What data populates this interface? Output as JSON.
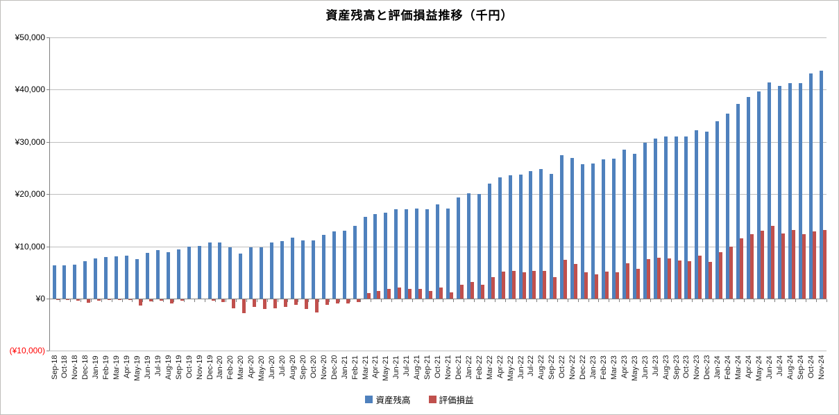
{
  "chart_data": {
    "type": "bar",
    "title": "資産残高と評価損益推移（千円）",
    "unit": "千円",
    "grid": true,
    "legend_position": "bottom",
    "ylim": [
      -10000,
      50000
    ],
    "y_ticks": [
      {
        "label": "¥50,000",
        "value": 50000,
        "color": "#000000"
      },
      {
        "label": "¥40,000",
        "value": 40000,
        "color": "#000000"
      },
      {
        "label": "¥30,000",
        "value": 30000,
        "color": "#000000"
      },
      {
        "label": "¥20,000",
        "value": 20000,
        "color": "#000000"
      },
      {
        "label": "¥10,000",
        "value": 10000,
        "color": "#000000"
      },
      {
        "label": "¥0",
        "value": 0,
        "color": "#000000"
      },
      {
        "label": "(¥10,000)",
        "value": -10000,
        "color": "#ff0000"
      }
    ],
    "categories": [
      "Sep-18",
      "Oct-18",
      "Nov-18",
      "Dec-18",
      "Jan-19",
      "Feb-19",
      "Mar-19",
      "Apr-19",
      "May-19",
      "Jun-19",
      "Jul-19",
      "Aug-19",
      "Sep-19",
      "Oct-19",
      "Nov-19",
      "Dec-19",
      "Jan-20",
      "Feb-20",
      "Mar-20",
      "Apr-20",
      "May-20",
      "Jun-20",
      "Jul-20",
      "Aug-20",
      "Sep-20",
      "Oct-20",
      "Nov-20",
      "Dec-20",
      "Jan-21",
      "Feb-21",
      "Mar-21",
      "Apr-21",
      "May-21",
      "Jun-21",
      "Jul-21",
      "Aug-21",
      "Sep-21",
      "Oct-21",
      "Nov-21",
      "Dec-21",
      "Jan-22",
      "Feb-22",
      "Mar-22",
      "Apr-22",
      "May-22",
      "Jun-22",
      "Jul-22",
      "Aug-22",
      "Sep-22",
      "Oct-22",
      "Nov-22",
      "Dec-22",
      "Jan-23",
      "Feb-23",
      "Mar-23",
      "Apr-23",
      "May-23",
      "Jun-23",
      "Jul-23",
      "Aug-23",
      "Sep-23",
      "Oct-23",
      "Nov-23",
      "Dec-23",
      "Jan-24",
      "Feb-24",
      "Mar-24",
      "Apr-24",
      "May-24",
      "Jun-24",
      "Jul-24",
      "Aug-24",
      "Sep-24",
      "Oct-24",
      "Nov-24"
    ],
    "series": [
      {
        "name": "資産残高",
        "color": "#4f81bd",
        "values": [
          6400,
          6300,
          6500,
          7100,
          7700,
          8000,
          8100,
          8200,
          7600,
          8700,
          9300,
          8900,
          9400,
          10000,
          10100,
          10800,
          10700,
          9800,
          8600,
          9800,
          9800,
          10700,
          11000,
          11700,
          11100,
          11100,
          12200,
          12900,
          13000,
          13900,
          15700,
          16200,
          16500,
          17100,
          17100,
          17300,
          17100,
          18100,
          17300,
          19400,
          20100,
          20000,
          22000,
          23200,
          23600,
          23700,
          24400,
          24800,
          23900,
          27400,
          26900,
          25700,
          25900,
          26700,
          26800,
          28500,
          27700,
          29900,
          30600,
          31000,
          31000,
          31000,
          32200,
          31900,
          34000,
          35400,
          37300,
          38600,
          39700,
          41400,
          40700,
          41300,
          41200,
          43100,
          43700
        ]
      },
      {
        "name": "評価損益",
        "color": "#c0504d",
        "values": [
          -100,
          -100,
          -200,
          -600,
          -200,
          -100,
          -100,
          -100,
          -1200,
          -400,
          -300,
          -800,
          -300,
          0,
          0,
          -200,
          -500,
          -1700,
          -2600,
          -1500,
          -1800,
          -1700,
          -1500,
          -1100,
          -1900,
          -2500,
          -1000,
          -800,
          -800,
          -500,
          1100,
          1500,
          1900,
          2100,
          1800,
          1900,
          1400,
          2100,
          1200,
          2700,
          3200,
          2700,
          4100,
          5200,
          5300,
          5000,
          5300,
          5300,
          4100,
          7400,
          6600,
          5000,
          4600,
          5200,
          5100,
          6700,
          5700,
          7500,
          7800,
          7700,
          7300,
          7100,
          8200,
          7000,
          8900,
          9900,
          11600,
          12300,
          13000,
          13900,
          12500,
          13100,
          12300,
          12800,
          13100
        ]
      }
    ]
  }
}
